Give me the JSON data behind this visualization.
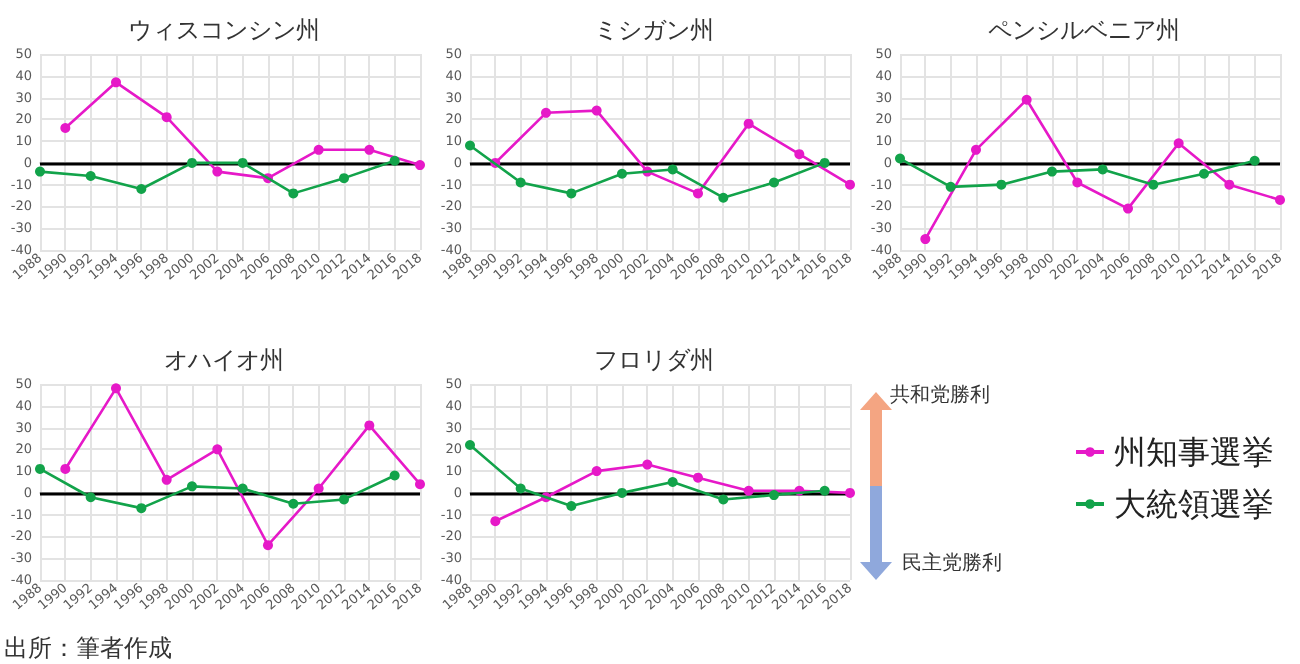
{
  "chart_data": [
    {
      "type": "line",
      "title": "ウィスコンシン州",
      "categories": [
        "1988",
        "1990",
        "1992",
        "1994",
        "1996",
        "1998",
        "2000",
        "2002",
        "2004",
        "2006",
        "2008",
        "2010",
        "2012",
        "2014",
        "2016",
        "2018"
      ],
      "series": [
        {
          "color": "#e619c8",
          "values": [
            null,
            16,
            null,
            37,
            null,
            21,
            null,
            -4,
            null,
            -7,
            null,
            6,
            null,
            6,
            null,
            -1
          ]
        },
        {
          "color": "#12a34a",
          "values": [
            -4,
            null,
            -6,
            null,
            -12,
            null,
            0,
            null,
            0,
            null,
            -14,
            null,
            -7,
            null,
            1,
            null
          ]
        }
      ],
      "ylim": [
        -40,
        50
      ],
      "yticks": [
        -40,
        -30,
        -20,
        -10,
        0,
        10,
        20,
        30,
        40,
        50
      ],
      "grid": true,
      "marker": "circle",
      "ref_lines": [
        {
          "axis": "y",
          "value": 0,
          "color": "#000000"
        }
      ]
    },
    {
      "type": "line",
      "title": "ミシガン州",
      "categories": [
        "1988",
        "1990",
        "1992",
        "1994",
        "1996",
        "1998",
        "2000",
        "2002",
        "2004",
        "2006",
        "2008",
        "2010",
        "2012",
        "2014",
        "2016",
        "2018"
      ],
      "series": [
        {
          "color": "#e619c8",
          "values": [
            null,
            0,
            null,
            23,
            null,
            24,
            null,
            -4,
            null,
            -14,
            null,
            18,
            null,
            4,
            null,
            -10
          ]
        },
        {
          "color": "#12a34a",
          "values": [
            8,
            null,
            -9,
            null,
            -14,
            null,
            -5,
            null,
            -3,
            null,
            -16,
            null,
            -9,
            null,
            0,
            null
          ]
        }
      ],
      "ylim": [
        -40,
        50
      ],
      "yticks": [
        -40,
        -30,
        -20,
        -10,
        0,
        10,
        20,
        30,
        40,
        50
      ],
      "grid": true,
      "marker": "circle",
      "ref_lines": [
        {
          "axis": "y",
          "value": 0,
          "color": "#000000"
        }
      ]
    },
    {
      "type": "line",
      "title": "ペンシルベニア州",
      "categories": [
        "1988",
        "1990",
        "1992",
        "1994",
        "1996",
        "1998",
        "2000",
        "2002",
        "2004",
        "2006",
        "2008",
        "2010",
        "2012",
        "2014",
        "2016",
        "2018"
      ],
      "series": [
        {
          "color": "#e619c8",
          "values": [
            null,
            -35,
            null,
            6,
            null,
            29,
            null,
            -9,
            null,
            -21,
            null,
            9,
            null,
            -10,
            null,
            -17
          ]
        },
        {
          "color": "#12a34a",
          "values": [
            2,
            null,
            -11,
            null,
            -10,
            null,
            -4,
            null,
            -3,
            null,
            -10,
            null,
            -5,
            null,
            1,
            null
          ]
        }
      ],
      "ylim": [
        -40,
        50
      ],
      "yticks": [
        -40,
        -30,
        -20,
        -10,
        0,
        10,
        20,
        30,
        40,
        50
      ],
      "grid": true,
      "marker": "circle",
      "ref_lines": [
        {
          "axis": "y",
          "value": 0,
          "color": "#000000"
        }
      ]
    },
    {
      "type": "line",
      "title": "オハイオ州",
      "categories": [
        "1988",
        "1990",
        "1992",
        "1994",
        "1996",
        "1998",
        "2000",
        "2002",
        "2004",
        "2006",
        "2008",
        "2010",
        "2012",
        "2014",
        "2016",
        "2018"
      ],
      "series": [
        {
          "color": "#e619c8",
          "values": [
            null,
            11,
            null,
            48,
            null,
            6,
            null,
            20,
            null,
            -24,
            null,
            2,
            null,
            31,
            null,
            4
          ]
        },
        {
          "color": "#12a34a",
          "values": [
            11,
            null,
            -2,
            null,
            -7,
            null,
            3,
            null,
            2,
            null,
            -5,
            null,
            -3,
            null,
            8,
            null
          ]
        }
      ],
      "ylim": [
        -40,
        50
      ],
      "yticks": [
        -40,
        -30,
        -20,
        -10,
        0,
        10,
        20,
        30,
        40,
        50
      ],
      "grid": true,
      "marker": "circle",
      "ref_lines": [
        {
          "axis": "y",
          "value": 0,
          "color": "#000000"
        }
      ],
      "annotations": [
        "出所：筆者作成"
      ]
    },
    {
      "type": "line",
      "title": "フロリダ州",
      "categories": [
        "1988",
        "1990",
        "1992",
        "1994",
        "1996",
        "1998",
        "2000",
        "2002",
        "2004",
        "2006",
        "2008",
        "2010",
        "2012",
        "2014",
        "2016",
        "2018"
      ],
      "series": [
        {
          "name": "州知事選挙",
          "color": "#e619c8",
          "values": [
            null,
            -13,
            null,
            -2,
            null,
            10,
            null,
            13,
            null,
            7,
            null,
            1,
            null,
            1,
            null,
            0
          ]
        },
        {
          "name": "大統領選挙",
          "color": "#12a34a",
          "values": [
            22,
            null,
            2,
            null,
            -6,
            null,
            0,
            null,
            5,
            null,
            -3,
            null,
            -1,
            null,
            1,
            null
          ]
        }
      ],
      "ylim": [
        -40,
        50
      ],
      "yticks": [
        -40,
        -30,
        -20,
        -10,
        0,
        10,
        20,
        30,
        40,
        50
      ],
      "grid": true,
      "marker": "circle",
      "legend": "right",
      "ref_lines": [
        {
          "axis": "y",
          "value": 0,
          "color": "#000000"
        }
      ],
      "annotations": [
        "共和党勝利",
        "民主党勝利"
      ]
    }
  ]
}
